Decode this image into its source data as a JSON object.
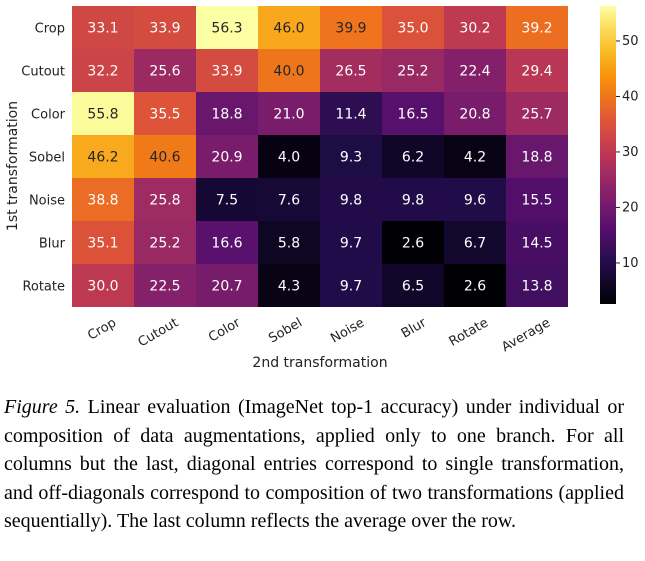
{
  "chart_data": {
    "type": "heatmap",
    "ylabel": "1st transformation",
    "xlabel": "2nd transformation",
    "rows": [
      "Crop",
      "Cutout",
      "Color",
      "Sobel",
      "Noise",
      "Blur",
      "Rotate"
    ],
    "columns": [
      "Crop",
      "Cutout",
      "Color",
      "Sobel",
      "Noise",
      "Blur",
      "Rotate",
      "Average"
    ],
    "values": [
      [
        33.1,
        33.9,
        56.3,
        46.0,
        39.9,
        35.0,
        30.2,
        39.2
      ],
      [
        32.2,
        25.6,
        33.9,
        40.0,
        26.5,
        25.2,
        22.4,
        29.4
      ],
      [
        55.8,
        35.5,
        18.8,
        21.0,
        11.4,
        16.5,
        20.8,
        25.7
      ],
      [
        46.2,
        40.6,
        20.9,
        4.0,
        9.3,
        6.2,
        4.2,
        18.8
      ],
      [
        38.8,
        25.8,
        7.5,
        7.6,
        9.8,
        9.8,
        9.6,
        15.5
      ],
      [
        35.1,
        25.2,
        16.6,
        5.8,
        9.7,
        2.6,
        6.7,
        14.5
      ],
      [
        30.0,
        22.5,
        20.7,
        4.3,
        9.7,
        6.5,
        2.6,
        13.8
      ]
    ],
    "colorbar": {
      "min": 2.6,
      "max": 56.3,
      "ticks": [
        10,
        20,
        30,
        40,
        50
      ],
      "colormap": "inferno"
    }
  },
  "caption": {
    "label": "Figure 5.",
    "text": "Linear evaluation (ImageNet top-1 accuracy) under individual or composition of data augmentations, applied only to one branch. For all columns but the last, diagonal entries correspond to single transformation, and off-diagonals correspond to composition of two transformations (applied sequentially). The last column reflects the average over the row."
  }
}
